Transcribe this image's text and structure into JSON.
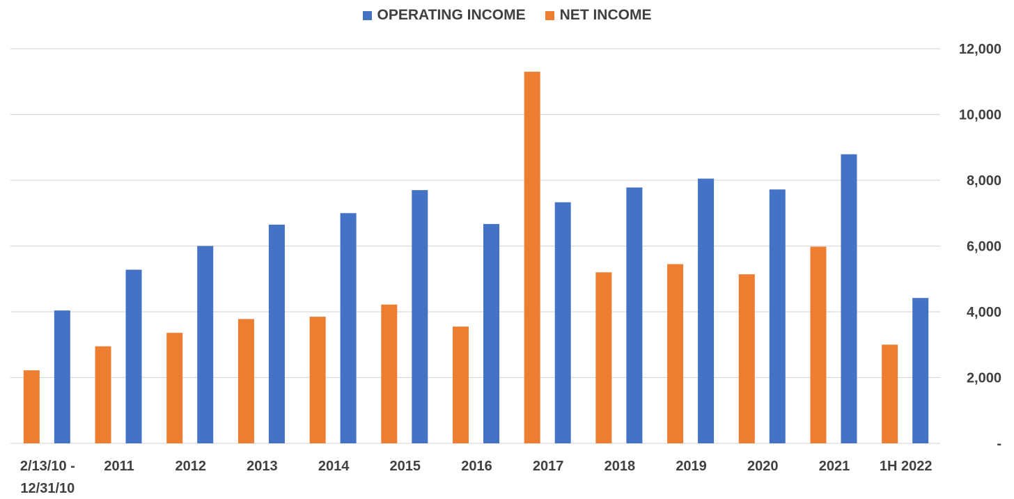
{
  "chart_data": {
    "type": "bar",
    "title": "",
    "xlabel": "",
    "ylabel": "",
    "categories": [
      [
        "2/13/10 -",
        "12/31/10"
      ],
      [
        "2011"
      ],
      [
        "2012"
      ],
      [
        "2013"
      ],
      [
        "2014"
      ],
      [
        "2015"
      ],
      [
        "2016"
      ],
      [
        "2017"
      ],
      [
        "2018"
      ],
      [
        "2019"
      ],
      [
        "2020"
      ],
      [
        "2021"
      ],
      [
        "1H 2022"
      ]
    ],
    "series": [
      {
        "name": "NET INCOME",
        "color": "#ED7D31",
        "values": [
          2220,
          2950,
          3360,
          3780,
          3850,
          4220,
          3550,
          11300,
          5200,
          5450,
          5140,
          5980,
          3000
        ]
      },
      {
        "name": "OPERATING INCOME",
        "color": "#4472C4",
        "values": [
          4040,
          5280,
          6000,
          6650,
          7000,
          7700,
          6670,
          7330,
          7780,
          8050,
          7720,
          8790,
          4420
        ]
      }
    ],
    "ylim": [
      0,
      12000
    ],
    "yticks": [
      {
        "value": 0,
        "label": "-"
      },
      {
        "value": 2000,
        "label": "2,000"
      },
      {
        "value": 4000,
        "label": "4,000"
      },
      {
        "value": 6000,
        "label": "6,000"
      },
      {
        "value": 8000,
        "label": "8,000"
      },
      {
        "value": 10000,
        "label": "10,000"
      },
      {
        "value": 12000,
        "label": "12,000"
      }
    ],
    "y_axis_side": "right",
    "grid": true,
    "legend_position": "top-center",
    "legend": [
      {
        "name": "OPERATING INCOME",
        "color": "#4472C4"
      },
      {
        "name": "NET INCOME",
        "color": "#ED7D31"
      }
    ]
  }
}
